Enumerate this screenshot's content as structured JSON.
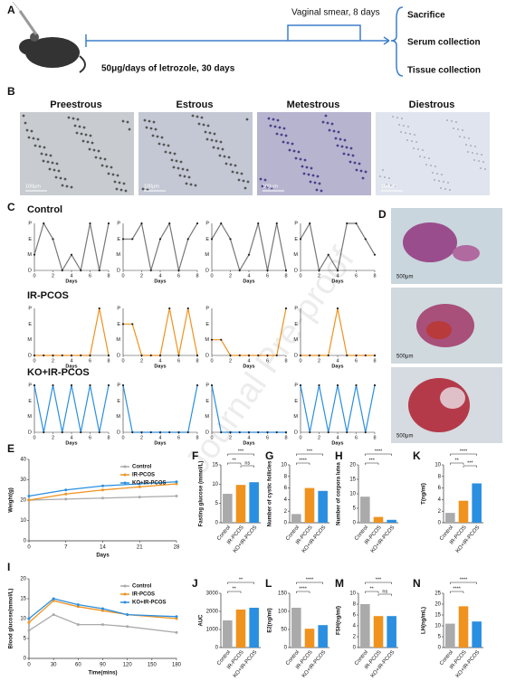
{
  "watermark": "Journal Pre-proof",
  "schema": {
    "label": "A",
    "smear": "Vaginal smear, 8 days",
    "treatment": "50μg/days of letrozole, 30 days",
    "outcomes": [
      "Sacrifice",
      "Serum collection",
      "Tissue collection"
    ]
  },
  "microscopy": {
    "label": "B",
    "scale": "100μm",
    "stages": [
      "Preestrous",
      "Estrous",
      "Metestrous",
      "Diestrous"
    ]
  },
  "histology": {
    "label": "D",
    "scale": "500μm"
  },
  "estrous_cycle": {
    "label": "C",
    "xlim": [
      0,
      8
    ],
    "xticks": [
      0,
      2,
      4,
      6,
      8
    ],
    "xlabel": "Days",
    "ylevels": [
      "P",
      "E",
      "M",
      "D"
    ],
    "groups": [
      {
        "name": "Control",
        "color": "#777777",
        "charts": [
          [
            "M",
            "P",
            "E",
            "D",
            "M",
            "D",
            "P",
            "D",
            "P"
          ],
          [
            "E",
            "E",
            "P",
            "D",
            "E",
            "P",
            "D",
            "E",
            "P"
          ],
          [
            "E",
            "P",
            "E",
            "D",
            "M",
            "P",
            "D",
            "P",
            "D"
          ],
          [
            "E",
            "P",
            "D",
            "M",
            "D",
            "P",
            "P",
            "E",
            "M"
          ]
        ]
      },
      {
        "name": "IR-PCOS",
        "color": "#f0921e",
        "charts": [
          [
            "D",
            "D",
            "D",
            "D",
            "D",
            "D",
            "D",
            "P",
            "D"
          ],
          [
            "E",
            "E",
            "D",
            "D",
            "D",
            "P",
            "D",
            "P",
            "D"
          ],
          [
            "M",
            "M",
            "D",
            "D",
            "D",
            "D",
            "D",
            "D",
            "P"
          ],
          [
            "D",
            "D",
            "D",
            "D",
            "P",
            "D",
            "D",
            "D",
            "D"
          ]
        ]
      },
      {
        "name": "KO+IR-PCOS",
        "color": "#2a8fe0",
        "charts": [
          [
            "P",
            "D",
            "P",
            "D",
            "P",
            "D",
            "P",
            "D",
            "P"
          ],
          [
            "P",
            "D",
            "D",
            "D",
            "D",
            "D",
            "D",
            "D",
            "P"
          ],
          [
            "P",
            "D",
            "D",
            "D",
            "D",
            "D",
            "D",
            "D",
            "D"
          ],
          [
            "P",
            "D",
            "P",
            "D",
            "P",
            "D",
            "P",
            "D",
            "P"
          ]
        ]
      }
    ]
  },
  "chart_data": [
    {
      "type": "line",
      "label": "E",
      "ylabel": "Weight(g)",
      "xlabel": "Days",
      "legend": "right",
      "x": [
        0,
        7,
        14,
        21,
        28
      ],
      "xlim": [
        0,
        28
      ],
      "xticks": [
        0,
        7,
        14,
        21,
        28
      ],
      "ylim": [
        0,
        40
      ],
      "yticks": [
        0,
        10,
        20,
        30,
        40
      ],
      "series": [
        {
          "name": "Control",
          "color": "#aaaaaa",
          "values": [
            20,
            20.5,
            21,
            21.5,
            22
          ]
        },
        {
          "name": "IR-PCOS",
          "color": "#f0921e",
          "values": [
            20,
            23,
            25,
            26.5,
            28
          ]
        },
        {
          "name": "KO+IR-PCOS",
          "color": "#2a8fe0",
          "values": [
            22,
            25,
            27,
            28,
            29
          ]
        }
      ]
    },
    {
      "type": "line",
      "label": "I",
      "ylabel": "Blood glucose(mmol/L)",
      "xlabel": "Time(mins)",
      "legend": "right",
      "x": [
        0,
        30,
        60,
        90,
        120,
        180
      ],
      "xlim": [
        0,
        180
      ],
      "xticks": [
        0,
        30,
        60,
        90,
        120,
        150,
        180
      ],
      "ylim": [
        0,
        20
      ],
      "yticks": [
        0,
        5,
        10,
        15,
        20
      ],
      "series": [
        {
          "name": "Control",
          "color": "#aaaaaa",
          "values": [
            7,
            11,
            8.5,
            8.5,
            8,
            6.5
          ]
        },
        {
          "name": "IR-PCOS",
          "color": "#f0921e",
          "values": [
            9,
            14.5,
            13,
            12,
            11,
            10
          ]
        },
        {
          "name": "KO+IR-PCOS",
          "color": "#2a8fe0",
          "values": [
            10,
            15,
            13.5,
            12.5,
            11,
            10.5
          ]
        }
      ]
    },
    {
      "type": "bar",
      "label": "F",
      "ylabel": "Fasting glucose (mmol/L)",
      "categories": [
        "Control",
        "IR-PCOS",
        "KO+IR-PCOS"
      ],
      "colors": [
        "#aaaaaa",
        "#f0921e",
        "#2a8fe0"
      ],
      "values": [
        7.5,
        9.8,
        10.5
      ],
      "ylim": [
        0,
        15
      ],
      "yticks": [
        0,
        5,
        10,
        15
      ],
      "significance": [
        "**",
        "ns",
        "***"
      ]
    },
    {
      "type": "bar",
      "label": "G",
      "ylabel": "Number of cystic follicles",
      "categories": [
        "Control",
        "IR-PCOS",
        "KO+IR-PCOS"
      ],
      "colors": [
        "#aaaaaa",
        "#f0921e",
        "#2a8fe0"
      ],
      "values": [
        1.5,
        6,
        5.5
      ],
      "ylim": [
        0,
        10
      ],
      "yticks": [
        0,
        2,
        4,
        6,
        8,
        10
      ],
      "significance": [
        "****",
        "***"
      ]
    },
    {
      "type": "bar",
      "label": "H",
      "ylabel": "Number of corpora lutea",
      "categories": [
        "Control",
        "IR-PCOS",
        "KO+IR-PCOS"
      ],
      "colors": [
        "#aaaaaa",
        "#f0921e",
        "#2a8fe0"
      ],
      "values": [
        9,
        2,
        1
      ],
      "ylim": [
        0,
        20
      ],
      "yticks": [
        0,
        5,
        10,
        15,
        20
      ],
      "significance": [
        "***",
        "****"
      ]
    },
    {
      "type": "bar",
      "label": "K",
      "ylabel": "T(ng/ml)",
      "categories": [
        "Control",
        "IR-PCOS",
        "KO+IR-PCOS"
      ],
      "colors": [
        "#aaaaaa",
        "#f0921e",
        "#2a8fe0"
      ],
      "values": [
        1.7,
        3.8,
        6.8
      ],
      "ylim": [
        0,
        10
      ],
      "yticks": [
        0,
        2,
        4,
        6,
        8,
        10
      ],
      "significance": [
        "**",
        "***",
        "****"
      ]
    },
    {
      "type": "bar",
      "label": "J",
      "ylabel": "AUC",
      "categories": [
        "Control",
        "IR-PCOS",
        "KO+IR-PCOS"
      ],
      "colors": [
        "#aaaaaa",
        "#f0921e",
        "#2a8fe0"
      ],
      "values": [
        1500,
        2100,
        2200
      ],
      "ylim": [
        0,
        3000
      ],
      "yticks": [
        0,
        1000,
        2000,
        3000
      ],
      "significance": [
        "**",
        "**"
      ]
    },
    {
      "type": "bar",
      "label": "L",
      "ylabel": "E2(ng/ml)",
      "categories": [
        "Control",
        "IR-PCOS",
        "KO+IR-PCOS"
      ],
      "colors": [
        "#aaaaaa",
        "#f0921e",
        "#2a8fe0"
      ],
      "values": [
        110,
        52,
        62
      ],
      "ylim": [
        0,
        150
      ],
      "yticks": [
        0,
        50,
        100,
        150
      ],
      "significance": [
        "****",
        "****"
      ]
    },
    {
      "type": "bar",
      "label": "M",
      "ylabel": "FSH(ng/ml)",
      "categories": [
        "Control",
        "IR-PCOS",
        "KO+IR-PCOS"
      ],
      "colors": [
        "#aaaaaa",
        "#f0921e",
        "#2a8fe0"
      ],
      "values": [
        8,
        5.8,
        5.8
      ],
      "ylim": [
        0,
        10
      ],
      "yticks": [
        0,
        2,
        4,
        6,
        8,
        10
      ],
      "significance": [
        "**",
        "ns",
        "***"
      ]
    },
    {
      "type": "bar",
      "label": "N",
      "ylabel": "LH(ng/mL)",
      "categories": [
        "Control",
        "IR-PCOS",
        "KO+IR-PCOS"
      ],
      "colors": [
        "#aaaaaa",
        "#f0921e",
        "#2a8fe0"
      ],
      "values": [
        11,
        19,
        12
      ],
      "ylim": [
        0,
        25
      ],
      "yticks": [
        0,
        5,
        10,
        15,
        20,
        25
      ],
      "significance": [
        "****",
        "****"
      ]
    }
  ]
}
